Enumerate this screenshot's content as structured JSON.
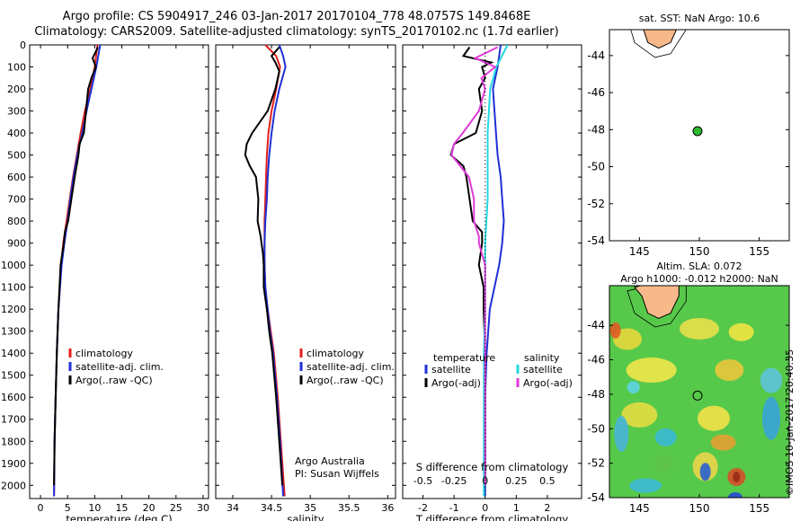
{
  "header": {
    "line1": "Argo profile: CS 5904917_246 03-Jan-2017 20170104_778 48.0757S 149.8468E",
    "line2": "Climatology: CARS2009. Satellite-adjusted climatology: synTS_20170102.nc (1.7d earlier)"
  },
  "colors": {
    "climatology": "#e0201b",
    "satellite": "#1f2fd6",
    "argo": "#000000",
    "t_sat": "#1f2fd6",
    "s_sat": "#22d7e0",
    "s_argo": "#e03ad8",
    "marker": "#2db82d",
    "land": "#f7b98a"
  },
  "chart_data": [
    {
      "type": "line",
      "name_key": "temperature",
      "xlabel": "temperature (deg C)",
      "ylabel": "",
      "xlim": [
        -2,
        31
      ],
      "ylim": [
        2060,
        0
      ],
      "xticks": [
        "0",
        "5",
        "10",
        "15",
        "20",
        "25",
        "30"
      ],
      "xtick_values": [
        0,
        5,
        10,
        15,
        20,
        25,
        30
      ],
      "yticks": [
        "0",
        "100",
        "200",
        "300",
        "400",
        "500",
        "600",
        "700",
        "800",
        "900",
        "1000",
        "1100",
        "1200",
        "1300",
        "1400",
        "1500",
        "1600",
        "1700",
        "1800",
        "1900",
        "2000"
      ],
      "ytick_values": [
        0,
        100,
        200,
        300,
        400,
        500,
        600,
        700,
        800,
        900,
        1000,
        1100,
        1200,
        1300,
        1400,
        1500,
        1600,
        1700,
        1800,
        1900,
        2000
      ],
      "legend": [
        "climatology",
        "satellite-adj. clim.",
        "Argo(..raw -QC)"
      ],
      "series": [
        {
          "name": "climatology",
          "depth": [
            0,
            100,
            200,
            300,
            400,
            500,
            600,
            700,
            800,
            900,
            1000,
            1200,
            1400,
            1600,
            1800,
            2050
          ],
          "values": [
            10.5,
            10.0,
            9.2,
            8.2,
            7.4,
            6.7,
            6.0,
            5.4,
            4.8,
            4.2,
            3.8,
            3.3,
            3.0,
            2.8,
            2.6,
            2.5
          ]
        },
        {
          "name": "satellite-adj. clim.",
          "depth": [
            0,
            100,
            200,
            300,
            400,
            500,
            600,
            700,
            800,
            900,
            1000,
            1200,
            1400,
            1600,
            1800,
            2050
          ],
          "values": [
            11.0,
            10.3,
            9.4,
            8.5,
            7.7,
            6.8,
            6.1,
            5.5,
            5.0,
            4.4,
            3.9,
            3.3,
            3.0,
            2.8,
            2.6,
            2.5
          ]
        },
        {
          "name": "Argo(..raw -QC)",
          "depth": [
            10,
            60,
            100,
            150,
            200,
            300,
            400,
            450,
            500,
            600,
            700,
            800,
            850,
            900,
            1000,
            1200,
            1400,
            1600,
            1800,
            2000
          ],
          "values": [
            10.6,
            9.6,
            10.2,
            9.4,
            8.8,
            8.4,
            8.0,
            7.2,
            7.0,
            6.3,
            5.7,
            5.1,
            4.5,
            4.3,
            3.7,
            3.3,
            3.0,
            2.8,
            2.6,
            2.5
          ]
        }
      ]
    },
    {
      "type": "line",
      "name_key": "salinity",
      "xlabel": "salinity",
      "ylabel": "",
      "xlim": [
        33.78,
        36.1
      ],
      "ylim": [
        2060,
        0
      ],
      "xticks": [
        "34",
        "34.5",
        "35",
        "35.5",
        "36"
      ],
      "xtick_values": [
        34,
        34.5,
        35,
        35.5,
        36
      ],
      "legend": [
        "climatology",
        "satellite-adj. clim.",
        "Argo(..raw -QC)"
      ],
      "credit": [
        "Argo Australia",
        "PI: Susan Wijffels"
      ],
      "series": [
        {
          "name": "climatology",
          "depth": [
            0,
            50,
            100,
            200,
            300,
            400,
            500,
            600,
            700,
            800,
            900,
            1000,
            1100,
            1200,
            1300,
            1400,
            1600,
            1800,
            2050
          ],
          "values": [
            34.42,
            34.56,
            34.61,
            34.56,
            34.5,
            34.46,
            34.44,
            34.43,
            34.42,
            34.41,
            34.41,
            34.41,
            34.42,
            34.45,
            34.49,
            34.53,
            34.58,
            34.62,
            34.67
          ]
        },
        {
          "name": "satellite-adj. clim.",
          "depth": [
            0,
            50,
            100,
            200,
            300,
            400,
            500,
            600,
            700,
            800,
            900,
            1000,
            1100,
            1200,
            1300,
            1400,
            1600,
            1800,
            2050
          ],
          "values": [
            34.6,
            34.65,
            34.68,
            34.6,
            34.54,
            34.5,
            34.47,
            34.45,
            34.44,
            34.42,
            34.41,
            34.41,
            34.42,
            34.45,
            34.48,
            34.52,
            34.57,
            34.61,
            34.65
          ]
        },
        {
          "name": "Argo(..raw -QC)",
          "depth": [
            10,
            50,
            80,
            120,
            200,
            300,
            400,
            450,
            500,
            550,
            600,
            700,
            800,
            870,
            900,
            950,
            1000,
            1100,
            1200,
            1300,
            1400,
            1600,
            1800,
            2000
          ],
          "values": [
            34.6,
            34.5,
            34.55,
            34.6,
            34.55,
            34.45,
            34.25,
            34.18,
            34.16,
            34.22,
            34.3,
            34.33,
            34.32,
            34.36,
            34.37,
            34.39,
            34.4,
            34.4,
            34.44,
            34.47,
            34.51,
            34.56,
            34.6,
            34.64
          ]
        }
      ]
    },
    {
      "type": "line",
      "name_key": "differences",
      "xlabel": "T difference from climatology",
      "x2label": "S difference from climatology",
      "xlim": [
        -2.65,
        3.1
      ],
      "ylim": [
        2060,
        0
      ],
      "xticks": [
        "-2",
        "-1",
        "0",
        "1",
        "2"
      ],
      "xtick_values": [
        -2,
        -1,
        0,
        1,
        2
      ],
      "x2ticks": [
        "-0.5",
        "-0.25",
        "0",
        "0.25",
        "0.5"
      ],
      "x2tick_values": [
        -0.5,
        -0.25,
        0,
        0.25,
        0.5
      ],
      "legend_left": {
        "header": "temperature",
        "items": [
          "satellite",
          "Argo(-adj)"
        ]
      },
      "legend_right": {
        "header": "salinity",
        "items": [
          "satellite",
          "Argo(-adj)"
        ]
      },
      "series": [
        {
          "name": "T satellite",
          "depth": [
            0,
            100,
            200,
            300,
            400,
            500,
            600,
            700,
            800,
            900,
            1000,
            1100,
            1200,
            1400,
            1600,
            1800,
            2050
          ],
          "values": [
            0.5,
            0.4,
            0.25,
            0.3,
            0.35,
            0.4,
            0.5,
            0.55,
            0.6,
            0.55,
            0.45,
            0.3,
            0.15,
            0.05,
            0.0,
            0.0,
            0.0
          ]
        },
        {
          "name": "T Argo(-adj)",
          "depth": [
            10,
            50,
            80,
            100,
            150,
            200,
            300,
            400,
            450,
            500,
            550,
            600,
            700,
            800,
            850,
            900,
            1000,
            1100,
            1200,
            1400,
            1600,
            1800,
            2000
          ],
          "values": [
            -0.5,
            -0.7,
            0.2,
            -0.1,
            0.0,
            -0.2,
            -0.1,
            -0.3,
            -1.0,
            -1.1,
            -0.7,
            -0.6,
            -0.5,
            -0.4,
            -0.1,
            -0.1,
            -0.2,
            -0.05,
            -0.05,
            0.0,
            0.0,
            0.0,
            0.0
          ]
        },
        {
          "name": "S satellite",
          "depth": [
            0,
            100,
            200,
            300,
            400,
            500,
            600,
            700,
            800,
            900,
            1000,
            1200,
            1400,
            1600,
            1800,
            2050
          ],
          "values": [
            0.18,
            0.09,
            0.04,
            0.03,
            0.02,
            0.02,
            0.02,
            0.02,
            0.01,
            0.0,
            0.0,
            0.0,
            -0.01,
            -0.01,
            -0.01,
            -0.01
          ]
        },
        {
          "name": "S Argo(-adj)",
          "depth": [
            10,
            60,
            100,
            150,
            200,
            300,
            400,
            450,
            500,
            550,
            600,
            700,
            800,
            870,
            900,
            1000,
            1100,
            1200,
            1400,
            1600,
            1800,
            2000
          ],
          "values": [
            0.1,
            -0.08,
            0.08,
            -0.03,
            0.0,
            -0.05,
            -0.18,
            -0.25,
            -0.27,
            -0.2,
            -0.13,
            -0.09,
            -0.09,
            -0.05,
            -0.05,
            0.0,
            0.0,
            0.0,
            0.0,
            0.0,
            0.0,
            0.0
          ]
        }
      ]
    },
    {
      "type": "scatter",
      "name_key": "sst_map",
      "title": "sat. SST: NaN Argo: 10.6",
      "xlim": [
        142.5,
        157.5
      ],
      "ylim": [
        -54,
        -42.6
      ],
      "xticks": [
        "145",
        "150",
        "155"
      ],
      "xtick_values": [
        145,
        150,
        155
      ],
      "yticks": [
        "-44",
        "-46",
        "-48",
        "-50",
        "-52",
        "-54"
      ],
      "ytick_values": [
        -44,
        -46,
        -48,
        -50,
        -52,
        -54
      ],
      "points": [
        {
          "lon": 149.85,
          "lat": -48.08
        }
      ]
    },
    {
      "type": "heatmap",
      "name_key": "sla_map",
      "title_lines": [
        "Altim. SLA: 0.072",
        "Argo h1000: -0.012 h2000: NaN"
      ],
      "xlim": [
        142.5,
        157.5
      ],
      "ylim": [
        -54,
        -41.7
      ],
      "xticks": [
        "145",
        "150",
        "155"
      ],
      "xtick_values": [
        145,
        150,
        155
      ],
      "yticks": [
        "-44",
        "-46",
        "-48",
        "-50",
        "-52",
        "-54"
      ],
      "ytick_values": [
        -44,
        -46,
        -48,
        -50,
        -52,
        -54
      ],
      "points": [
        {
          "lon": 149.85,
          "lat": -48.08
        }
      ]
    }
  ],
  "stamp": "©IMOS 10-Jan-2017 20:40:35"
}
